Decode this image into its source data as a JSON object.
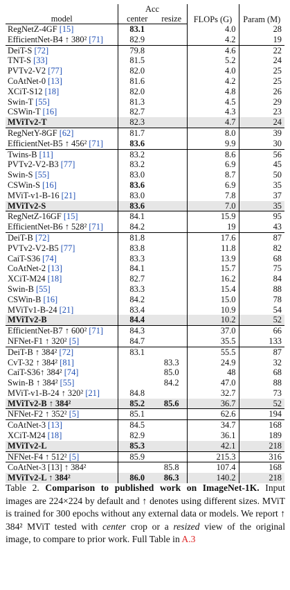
{
  "header": {
    "acc": "Acc",
    "model": "model",
    "center": "center",
    "resize": "resize",
    "flops": "FLOPs (G)",
    "param": "Param (M)"
  },
  "groups": [
    {
      "rows": [
        {
          "name": "RegNetZ-4GF",
          "ref": "[15]",
          "center": "83.1",
          "resize": "",
          "flops": "4.0",
          "param": "28",
          "bold": [
            "center"
          ]
        },
        {
          "name": "EfficientNet-B4 ↑ 380²",
          "ref": "[71]",
          "center": "82.9",
          "resize": "",
          "flops": "4.2",
          "param": "19"
        }
      ]
    },
    {
      "rows": [
        {
          "name": "DeiT-S",
          "ref": "[72]",
          "center": "79.8",
          "resize": "",
          "flops": "4.6",
          "param": "22"
        },
        {
          "name": "TNT-S",
          "ref": "[33]",
          "center": "81.5",
          "resize": "",
          "flops": "5.2",
          "param": "24"
        },
        {
          "name": "PVTv2-V2",
          "ref": "[77]",
          "center": "82.0",
          "resize": "",
          "flops": "4.0",
          "param": "25"
        },
        {
          "name": "CoAtNet-0",
          "ref": "[13]",
          "center": "81.6",
          "resize": "",
          "flops": "4.2",
          "param": "25"
        },
        {
          "name": "XCiT-S12",
          "ref": "[18]",
          "center": "82.0",
          "resize": "",
          "flops": "4.8",
          "param": "26"
        },
        {
          "name": "Swin-T",
          "ref": "[55]",
          "center": "81.3",
          "resize": "",
          "flops": "4.5",
          "param": "29"
        },
        {
          "name": "CSWin-T",
          "ref": "[16]",
          "center": "82.7",
          "resize": "",
          "flops": "4.3",
          "param": "23"
        },
        {
          "name": "MViTv2-T",
          "ref": "",
          "center": "82.3",
          "resize": "",
          "flops": "4.7",
          "param": "24",
          "hl": true,
          "boldName": true
        }
      ]
    },
    {
      "rows": [
        {
          "name": "RegNetY-8GF",
          "ref": "[62]",
          "center": "81.7",
          "resize": "",
          "flops": "8.0",
          "param": "39"
        },
        {
          "name": "EfficientNet-B5 ↑ 456²",
          "ref": "[71]",
          "center": "83.6",
          "resize": "",
          "flops": "9.9",
          "param": "30",
          "bold": [
            "center"
          ]
        }
      ]
    },
    {
      "rows": [
        {
          "name": "Twins-B",
          "ref": "[11]",
          "center": "83.2",
          "resize": "",
          "flops": "8.6",
          "param": "56"
        },
        {
          "name": "PVTv2-V2-B3",
          "ref": "[77]",
          "center": "83.2",
          "resize": "",
          "flops": "6.9",
          "param": "45"
        },
        {
          "name": "Swin-S",
          "ref": "[55]",
          "center": "83.0",
          "resize": "",
          "flops": "8.7",
          "param": "50"
        },
        {
          "name": "CSWin-S",
          "ref": "[16]",
          "center": "83.6",
          "resize": "",
          "flops": "6.9",
          "param": "35",
          "bold": [
            "center"
          ]
        },
        {
          "name": "MViT-v1-B-16",
          "ref": "[21]",
          "center": "83.0",
          "resize": "",
          "flops": "7.8",
          "param": "37"
        },
        {
          "name": "MViTv2-S",
          "ref": "",
          "center": "83.6",
          "resize": "",
          "flops": "7.0",
          "param": "35",
          "hl": true,
          "boldName": true,
          "bold": [
            "center"
          ]
        }
      ]
    },
    {
      "rows": [
        {
          "name": "RegNetZ-16GF",
          "ref": "[15]",
          "center": "84.1",
          "resize": "",
          "flops": "15.9",
          "param": "95"
        },
        {
          "name": "EfficientNet-B6 ↑ 528²",
          "ref": "[71]",
          "center": "84.2",
          "resize": "",
          "flops": "19",
          "param": "43"
        }
      ]
    },
    {
      "rows": [
        {
          "name": "DeiT-B",
          "ref": "[72]",
          "center": "81.8",
          "resize": "",
          "flops": "17.6",
          "param": "87"
        },
        {
          "name": "PVTv2-V2-B5",
          "ref": "[77]",
          "center": "83.8",
          "resize": "",
          "flops": "11.8",
          "param": "82"
        },
        {
          "name": "CaiT-S36",
          "ref": "[74]",
          "center": "83.3",
          "resize": "",
          "flops": "13.9",
          "param": "68"
        },
        {
          "name": "CoAtNet-2",
          "ref": "[13]",
          "center": "84.1",
          "resize": "",
          "flops": "15.7",
          "param": "75"
        },
        {
          "name": "XCiT-M24",
          "ref": "[18]",
          "center": "82.7",
          "resize": "",
          "flops": "16.2",
          "param": "84"
        },
        {
          "name": "Swin-B",
          "ref": "[55]",
          "center": "83.3",
          "resize": "",
          "flops": "15.4",
          "param": "88"
        },
        {
          "name": "CSWin-B",
          "ref": "[16]",
          "center": "84.2",
          "resize": "",
          "flops": "15.0",
          "param": "78"
        },
        {
          "name": "MViTv1-B-24",
          "ref": "[21]",
          "center": "83.4",
          "resize": "",
          "flops": "10.9",
          "param": "54"
        },
        {
          "name": "MViTv2-B",
          "ref": "",
          "center": "84.4",
          "resize": "",
          "flops": "10.2",
          "param": "52",
          "hl": true,
          "boldName": true,
          "bold": [
            "center"
          ]
        }
      ]
    },
    {
      "rows": [
        {
          "name": "EfficientNet-B7 ↑ 600²",
          "ref": "[71]",
          "center": "84.3",
          "resize": "",
          "flops": "37.0",
          "param": "66"
        },
        {
          "name": "NFNet-F1 ↑ 320²",
          "ref": "[5]",
          "center": "84.7",
          "resize": "",
          "flops": "35.5",
          "param": "133"
        }
      ]
    },
    {
      "rows": [
        {
          "name": "DeiT-B ↑ 384²",
          "ref": "[72]",
          "center": "83.1",
          "resize": "",
          "flops": "55.5",
          "param": "87"
        },
        {
          "name": "CvT-32 ↑ 384²",
          "ref": "[81]",
          "center": "",
          "resize": "83.3",
          "flops": "24.9",
          "param": "32"
        },
        {
          "name": "CaiT-S36↑ 384²",
          "ref": "[74]",
          "center": "",
          "resize": "85.0",
          "flops": "48",
          "param": "68"
        },
        {
          "name": "Swin-B ↑ 384²",
          "ref": "[55]",
          "center": "",
          "resize": "84.2",
          "flops": "47.0",
          "param": "88"
        },
        {
          "name": "MViT-v1-B-24 ↑ 320²",
          "ref": "[21]",
          "center": "84.8",
          "resize": "",
          "flops": "32.7",
          "param": "73"
        },
        {
          "name": "MViTv2-B ↑ 384²",
          "ref": "",
          "center": "85.2",
          "resize": "85.6",
          "flops": "36.7",
          "param": "52",
          "hl": true,
          "boldName": true,
          "bold": [
            "center",
            "resize"
          ]
        }
      ]
    },
    {
      "rows": [
        {
          "name": "NFNet-F2 ↑ 352²",
          "ref": "[5]",
          "center": "85.1",
          "resize": "",
          "flops": "62.6",
          "param": "194"
        }
      ]
    },
    {
      "rows": [
        {
          "name": "CoAtNet-3",
          "ref": "[13]",
          "center": "84.5",
          "resize": "",
          "flops": "34.7",
          "param": "168"
        },
        {
          "name": "XCiT-M24",
          "ref": "[18]",
          "center": "82.9",
          "resize": "",
          "flops": "36.1",
          "param": "189"
        },
        {
          "name": "MViTv2-L",
          "ref": "",
          "center": "85.3",
          "resize": "",
          "flops": "42.1",
          "param": "218",
          "hl": true,
          "boldName": true,
          "bold": [
            "center"
          ]
        }
      ]
    },
    {
      "rows": [
        {
          "name": "NFNet-F4 ↑ 512²",
          "ref": "[5]",
          "center": "85.9",
          "resize": "",
          "flops": "215.3",
          "param": "316"
        }
      ]
    },
    {
      "rows": [
        {
          "name": "CoAtNet-3 [13] ↑ 384²",
          "ref": "",
          "center": "",
          "resize": "85.8",
          "flops": "107.4",
          "param": "168"
        },
        {
          "name": "MViTv2-L ↑ 384²",
          "ref": "",
          "center": "86.0",
          "resize": "86.3",
          "flops": "140.2",
          "param": "218",
          "hl": true,
          "boldName": true,
          "bold": [
            "center",
            "resize"
          ]
        }
      ]
    }
  ],
  "caption": {
    "label": "Table 2.",
    "title": "Comparison to published work on ImageNet-1K",
    "title_end": ".",
    "body1": "Input images are 224×224 by default and ↑ denotes using different sizes. MViT is trained for 300 epochs without any external data or models. We report ↑ 384² MViT tested with",
    "em1": "center",
    "body2": "crop or a",
    "em2": "resized",
    "body3": "view of the original image, to compare to prior work. Full Table in",
    "ref": "A.3"
  }
}
